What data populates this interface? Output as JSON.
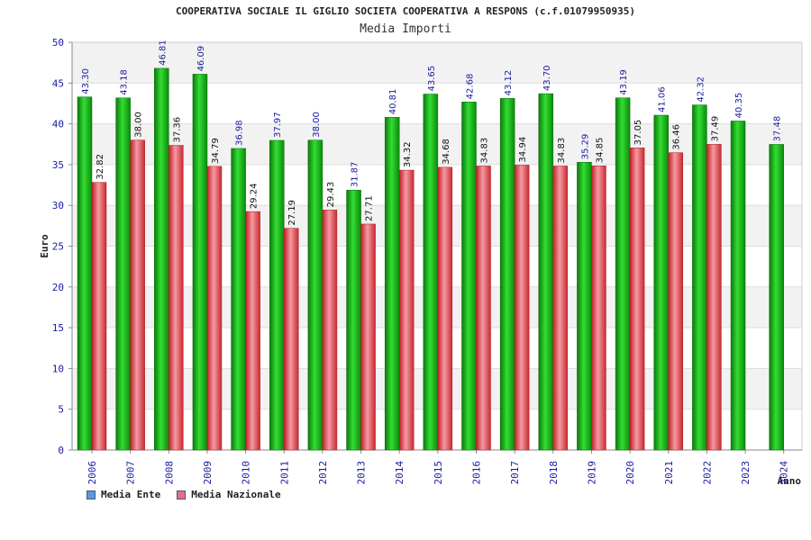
{
  "title": "COOPERATIVA SOCIALE IL GIGLIO SOCIETA COOPERATIVA A RESPONS (c.f.01079950935)",
  "subtitle": "Media Importi",
  "chart_data": {
    "type": "bar",
    "title": "COOPERATIVA SOCIALE IL GIGLIO SOCIETA COOPERATIVA A RESPONS (c.f.01079950935)",
    "subtitle": "Media Importi",
    "xlabel": "Anno",
    "ylabel": "Euro",
    "ylim": [
      0,
      50
    ],
    "yticks": [
      0,
      5,
      10,
      15,
      20,
      25,
      30,
      35,
      40,
      45,
      50
    ],
    "categories": [
      "2006",
      "2007",
      "2008",
      "2009",
      "2010",
      "2011",
      "2012",
      "2013",
      "2014",
      "2015",
      "2016",
      "2017",
      "2018",
      "2019",
      "2020",
      "2021",
      "2022",
      "2023",
      "2024"
    ],
    "series": [
      {
        "name": "Media Ente",
        "color": "#12b012",
        "legend_color": "#5599ee",
        "values": [
          43.3,
          43.18,
          46.81,
          46.09,
          36.98,
          37.97,
          38.0,
          31.87,
          40.81,
          43.65,
          42.68,
          43.12,
          43.7,
          35.29,
          43.19,
          41.06,
          42.32,
          40.35,
          37.48
        ],
        "labels": [
          "43.30",
          "43.18",
          "46.81",
          "46.09",
          "36.98",
          "37.97",
          "38.00",
          "31.87",
          "40.81",
          "43.65",
          "42.68",
          "43.12",
          "43.70",
          "35.29",
          "43.19",
          "41.06",
          "42.32",
          "40.35",
          "37.48"
        ]
      },
      {
        "name": "Media Nazionale",
        "color": "#e8404a",
        "legend_color": "#e07090",
        "values": [
          32.82,
          38.0,
          37.36,
          34.79,
          29.24,
          27.19,
          29.43,
          27.71,
          34.32,
          34.68,
          34.83,
          34.94,
          34.83,
          34.85,
          37.05,
          36.46,
          37.49,
          null,
          null
        ],
        "labels": [
          "32.82",
          "38.00",
          "37.36",
          "34.79",
          "29.24",
          "27.19",
          "29.43",
          "27.71",
          "34.32",
          "34.68",
          "34.83",
          "34.94",
          "34.83",
          "34.85",
          "37.05",
          "36.46",
          "37.49",
          "",
          ""
        ]
      }
    ],
    "grid": true,
    "legend_position": "bottom-left"
  }
}
